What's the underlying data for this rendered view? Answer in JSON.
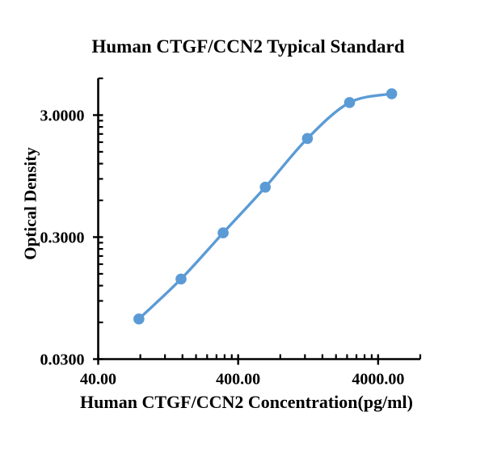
{
  "chart": {
    "title": "Human CTGF/CCN2 Typical Standard",
    "x_axis_label": "Human CTGF/CCN2 Concentration(pg/ml)",
    "y_axis_label": "Optical Density",
    "series_color": "#5B9BD5",
    "axis_color": "#000000",
    "background_color": "#ffffff"
  },
  "chart_data": {
    "type": "line",
    "title": "Human CTGF/CCN2 Typical Standard",
    "xlabel": "Human CTGF/CCN2 Concentration(pg/ml)",
    "ylabel": "Optical Density",
    "x_scale": "log10",
    "y_scale": "log10",
    "series": [
      {
        "name": "Typical Standard",
        "x": [
          78.13,
          156.25,
          312.5,
          625,
          1250,
          2500,
          5000
        ],
        "y": [
          0.064,
          0.136,
          0.325,
          0.77,
          1.93,
          3.8,
          4.49
        ]
      }
    ],
    "x_major_ticks": [
      40,
      400,
      4000
    ],
    "x_tick_labels": [
      "40.00",
      "400.00",
      "4000.00"
    ],
    "y_major_ticks": [
      0.03,
      0.3,
      3.0
    ],
    "y_tick_labels": [
      "0.0300",
      "0.3000",
      "3.0000"
    ],
    "xlim": [
      40,
      8000
    ],
    "ylim": [
      0.03,
      6
    ],
    "grid": false,
    "legend": "none",
    "marker": "circle",
    "line_smooth": true
  }
}
